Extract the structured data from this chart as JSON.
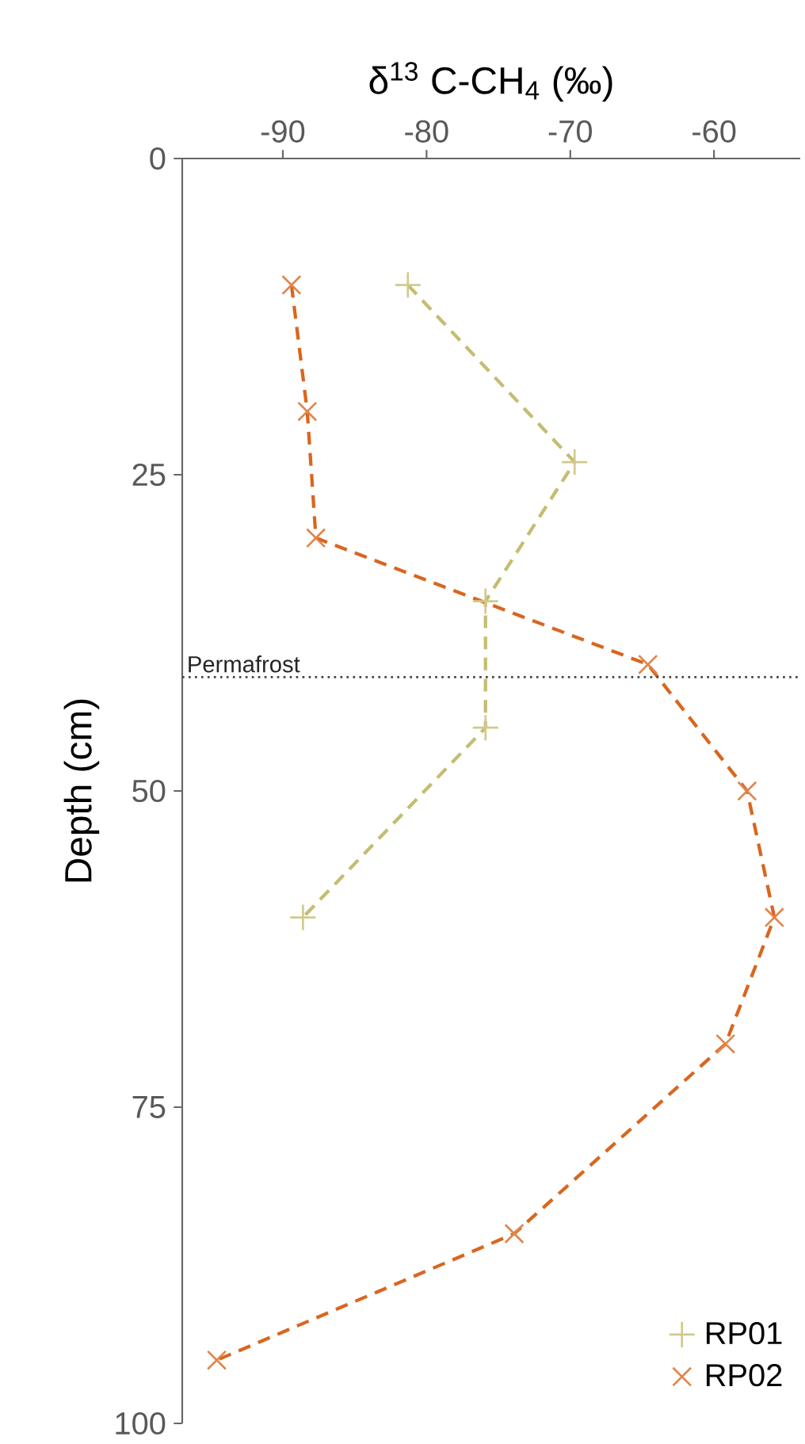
{
  "chart_data": {
    "type": "line",
    "xlabel": "δ$^{13}$ C-CH$_{4}$ (‰)",
    "ylabel": "Depth (cm)",
    "xlim": [
      -97,
      -54
    ],
    "xticks": [
      -90,
      -80,
      -70,
      -60
    ],
    "ylim": [
      100,
      0
    ],
    "yticks": [
      0,
      25,
      50,
      75,
      100
    ],
    "grid": false,
    "legend": "bottom right",
    "line_style": "dashed",
    "series": [
      {
        "name": "RP01",
        "color": "#c4bd70",
        "marker": "plus",
        "x": [
          -81.3,
          -69.7,
          -75.9,
          -75.9,
          -88.6
        ],
        "values": [
          10,
          24,
          35,
          45,
          60
        ]
      },
      {
        "name": "RP02",
        "color": "#d9661f",
        "marker": "cross",
        "x": [
          -89.4,
          -88.3,
          -87.7,
          -64.6,
          -57.7,
          -55.8,
          -59.2,
          -73.9,
          -94.6
        ],
        "values": [
          10,
          20,
          30,
          40,
          50,
          60,
          70,
          85,
          95
        ]
      }
    ],
    "ref_lines": [
      {
        "axis": "y",
        "value": 41,
        "label": "Permafrost",
        "line_style": "dotted",
        "color": "#444444"
      }
    ]
  }
}
